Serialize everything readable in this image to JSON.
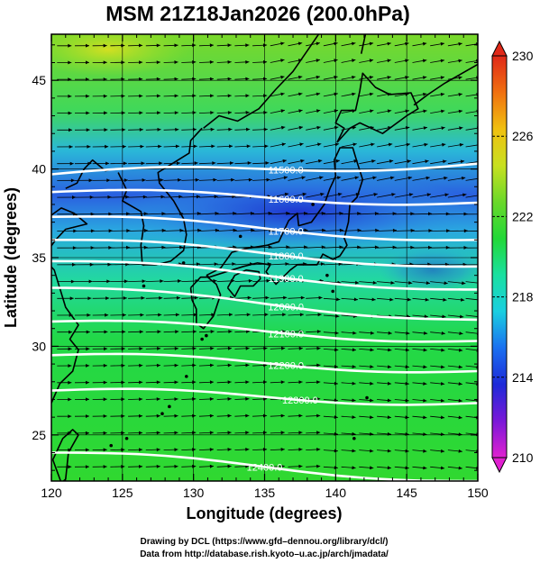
{
  "title": "MSM 21Z18Jan2026 (200.0hPa)",
  "xlabel": "Longitude (degrees)",
  "ylabel": "Latitude  (degrees)",
  "colors": {
    "axes": "#000000",
    "contour": "#ffffff",
    "coastline": "#000000",
    "vectors": "#000000"
  },
  "map": {
    "lon_range": [
      120,
      150
    ],
    "lat_range": [
      22.4,
      47.6
    ],
    "x_ticks": [
      120,
      125,
      130,
      135,
      140,
      145,
      150
    ],
    "y_ticks": [
      25,
      30,
      35,
      40,
      45
    ],
    "x_tick_labels": [
      "120",
      "125",
      "130",
      "135",
      "140",
      "145",
      "150"
    ],
    "y_tick_labels": [
      "25",
      "30",
      "35",
      "40",
      "45"
    ],
    "grid": true,
    "background_field": "shaded temperature (K)",
    "overlay": "wind vectors (all pointing roughly eastward)"
  },
  "contours": [
    {
      "label": "11500.0",
      "lat_at_west": 39.7,
      "lat_at_east": 40.3,
      "label_lon": 136.5
    },
    {
      "label": "11600.0",
      "lat_at_west": 38.7,
      "lat_at_east": 38.1,
      "label_lon": 136.5
    },
    {
      "label": "11700.0",
      "lat_at_west": 37.3,
      "lat_at_east": 36.0,
      "label_lon": 136.5
    },
    {
      "label": "11800.0",
      "lat_at_west": 36.0,
      "lat_at_east": 34.5,
      "label_lon": 136.5
    },
    {
      "label": "11900.0",
      "lat_at_west": 34.8,
      "lat_at_east": 33.2,
      "label_lon": 136.5
    },
    {
      "label": "12000.0",
      "lat_at_west": 33.3,
      "lat_at_east": 31.5,
      "label_lon": 136.5
    },
    {
      "label": "12100.0",
      "lat_at_west": 31.4,
      "lat_at_east": 30.3,
      "label_lon": 136.5
    },
    {
      "label": "12200.0",
      "lat_at_west": 29.5,
      "lat_at_east": 28.6,
      "label_lon": 136.5
    },
    {
      "label": "12300.0",
      "lat_at_west": 27.5,
      "lat_at_east": 26.8,
      "label_lon": 137.5
    },
    {
      "label": "12400.0",
      "lat_at_west": 24.0,
      "lat_at_east": 22.4,
      "label_lon": 135.0
    }
  ],
  "colorbar": {
    "min": 210,
    "max": 230,
    "ticks": [
      210,
      214,
      218,
      222,
      226,
      230
    ],
    "tick_labels": [
      "210",
      "214",
      "218",
      "222",
      "226",
      "230"
    ],
    "colors": [
      "#e020d0",
      "#7a18d8",
      "#1e2ad8",
      "#1a70f0",
      "#1acfe0",
      "#1ae0a0",
      "#22d838",
      "#6ad82a",
      "#c8e020",
      "#f0c010",
      "#f07010",
      "#e02818"
    ]
  },
  "credits": {
    "line1": "Drawing by DCL (https://www.gfd–dennou.org/library/dcl/)",
    "line2": "Data from http://database.rish.kyoto–u.ac.jp/arch/jmadata/"
  }
}
